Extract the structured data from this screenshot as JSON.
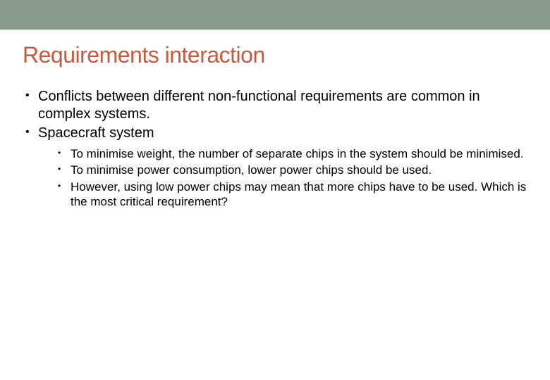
{
  "colors": {
    "top_bar_bg": "#8a9a88",
    "title_color": "#c55a3f",
    "text_color": "#000000",
    "page_bg": "#ffffff"
  },
  "title": "Requirements interaction",
  "bullets": [
    {
      "text": "Conflicts between different non-functional requirements are common in complex systems."
    },
    {
      "text": "Spacecraft system",
      "children": [
        {
          "text": "To minimise weight, the number of separate chips in the system should be minimised."
        },
        {
          "text": "To minimise power consumption, lower power chips should be used."
        },
        {
          "text": "However, using low power chips may mean that more chips have to be used. Which is the most critical requirement?"
        }
      ]
    }
  ]
}
